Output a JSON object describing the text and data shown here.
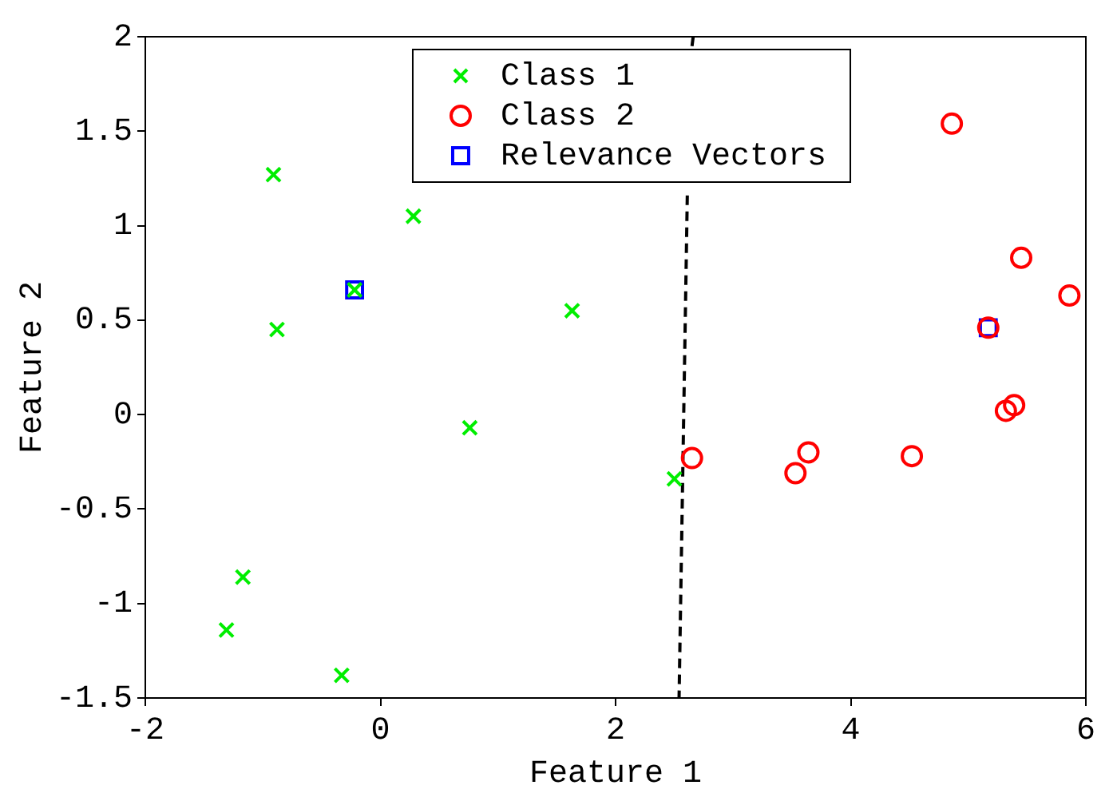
{
  "chart_data": {
    "type": "scatter",
    "xlabel": "Feature 1",
    "ylabel": "Feature 2",
    "xlim": [
      -2,
      6
    ],
    "ylim": [
      -1.5,
      2
    ],
    "xticks": [
      -2,
      0,
      2,
      4,
      6
    ],
    "yticks": [
      -1.5,
      -1,
      -0.5,
      0,
      0.5,
      1,
      1.5,
      2
    ],
    "grid": false,
    "legend": "top",
    "series": [
      {
        "name": "Class 1",
        "color": "#00ee00",
        "marker": "cross",
        "x": [
          -0.91,
          0.28,
          -0.22,
          -0.88,
          1.63,
          0.76,
          2.5,
          -1.17,
          -1.31,
          -0.33
        ],
        "values": [
          1.27,
          1.05,
          0.66,
          0.45,
          0.55,
          -0.07,
          -0.34,
          -0.86,
          -1.14,
          -1.38
        ]
      },
      {
        "name": "Class 2",
        "color": "#ff0000",
        "marker": "circle",
        "x": [
          4.86,
          5.45,
          5.86,
          5.17,
          2.65,
          3.53,
          3.64,
          4.52,
          5.32,
          5.39
        ],
        "values": [
          1.54,
          0.83,
          0.63,
          0.46,
          -0.23,
          -0.31,
          -0.2,
          -0.22,
          0.02,
          0.05
        ]
      },
      {
        "name": "Relevance Vectors",
        "color": "#0000ff",
        "marker": "square",
        "x": [
          -0.22,
          5.17
        ],
        "values": [
          0.66,
          0.46
        ]
      },
      {
        "type": "line",
        "color": "#000000",
        "line_style": "dashed",
        "marker": "none",
        "x": [
          2.66,
          2.65,
          2.63,
          2.61,
          2.54
        ],
        "values": [
          2,
          1.95,
          null,
          1.16,
          -1.5
        ]
      }
    ]
  }
}
